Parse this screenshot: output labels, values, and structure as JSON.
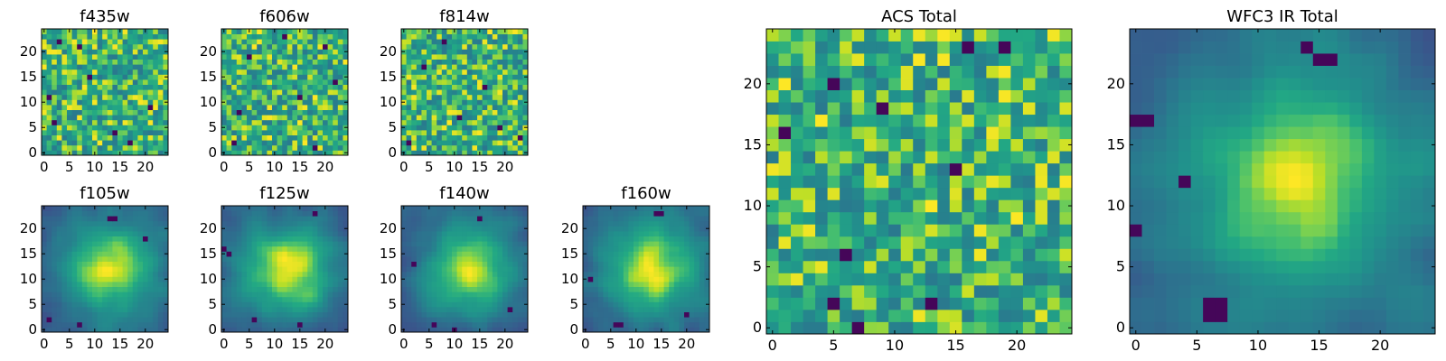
{
  "chart_data": [
    {
      "type": "heatmap",
      "title": "f435w",
      "xlabel": "",
      "ylabel": "",
      "xlim": [
        -0.5,
        24.5
      ],
      "ylim": [
        -0.5,
        24.5
      ],
      "xticks": [
        0,
        5,
        10,
        15,
        20
      ],
      "yticks": [
        0,
        5,
        10,
        15,
        20
      ],
      "grid": false,
      "colormap": "viridis",
      "pattern": "noise",
      "dark_pixels": [
        [
          2,
          6
        ],
        [
          3,
          22
        ],
        [
          7,
          21
        ],
        [
          14,
          4
        ],
        [
          1,
          11
        ],
        [
          21,
          9
        ],
        [
          17,
          2
        ],
        [
          9,
          15
        ]
      ],
      "seed": 11
    },
    {
      "type": "heatmap",
      "title": "f606w",
      "xlabel": "",
      "ylabel": "",
      "xlim": [
        -0.5,
        24.5
      ],
      "ylim": [
        -0.5,
        24.5
      ],
      "xticks": [
        0,
        5,
        10,
        15,
        20
      ],
      "yticks": [
        0,
        5,
        10,
        15,
        20
      ],
      "grid": false,
      "colormap": "viridis",
      "pattern": "noise",
      "dark_pixels": [
        [
          2,
          2
        ],
        [
          5,
          19
        ],
        [
          12,
          23
        ],
        [
          18,
          1
        ],
        [
          22,
          14
        ],
        [
          3,
          8
        ],
        [
          15,
          11
        ],
        [
          20,
          21
        ]
      ],
      "seed": 23
    },
    {
      "type": "heatmap",
      "title": "f814w",
      "xlabel": "",
      "ylabel": "",
      "xlim": [
        -0.5,
        24.5
      ],
      "ylim": [
        -0.5,
        24.5
      ],
      "xticks": [
        0,
        5,
        10,
        15,
        20
      ],
      "yticks": [
        0,
        5,
        10,
        15,
        20
      ],
      "grid": false,
      "colormap": "viridis",
      "pattern": "noise",
      "dark_pixels": [
        [
          1,
          2
        ],
        [
          16,
          13
        ],
        [
          8,
          22
        ],
        [
          19,
          5
        ],
        [
          4,
          17
        ],
        [
          23,
          3
        ],
        [
          11,
          7
        ]
      ],
      "seed": 37
    },
    {
      "type": "heatmap",
      "title": "f105w",
      "xlabel": "",
      "ylabel": "",
      "xlim": [
        -0.5,
        24.5
      ],
      "ylim": [
        -0.5,
        24.5
      ],
      "xticks": [
        0,
        5,
        10,
        15,
        20
      ],
      "yticks": [
        0,
        5,
        10,
        15,
        20
      ],
      "grid": false,
      "colormap": "viridis",
      "pattern": "smooth",
      "dark_pixels": [
        [
          13,
          22
        ],
        [
          14,
          22
        ],
        [
          1,
          2
        ],
        [
          7,
          1
        ],
        [
          20,
          18
        ]
      ],
      "seed": 41
    },
    {
      "type": "heatmap",
      "title": "f125w",
      "xlabel": "",
      "ylabel": "",
      "xlim": [
        -0.5,
        24.5
      ],
      "ylim": [
        -0.5,
        24.5
      ],
      "xticks": [
        0,
        5,
        10,
        15,
        20
      ],
      "yticks": [
        0,
        5,
        10,
        15,
        20
      ],
      "grid": false,
      "colormap": "viridis",
      "pattern": "smooth",
      "dark_pixels": [
        [
          0,
          16
        ],
        [
          1,
          15
        ],
        [
          18,
          23
        ],
        [
          6,
          2
        ],
        [
          15,
          1
        ]
      ],
      "seed": 53
    },
    {
      "type": "heatmap",
      "title": "f140w",
      "xlabel": "",
      "ylabel": "",
      "xlim": [
        -0.5,
        24.5
      ],
      "ylim": [
        -0.5,
        24.5
      ],
      "xticks": [
        0,
        5,
        10,
        15,
        20
      ],
      "yticks": [
        0,
        5,
        10,
        15,
        20
      ],
      "grid": false,
      "colormap": "viridis",
      "pattern": "smooth",
      "dark_pixels": [
        [
          15,
          22
        ],
        [
          2,
          13
        ],
        [
          6,
          1
        ],
        [
          21,
          4
        ],
        [
          10,
          0
        ]
      ],
      "seed": 67
    },
    {
      "type": "heatmap",
      "title": "f160w",
      "xlabel": "",
      "ylabel": "",
      "xlim": [
        -0.5,
        24.5
      ],
      "ylim": [
        -0.5,
        24.5
      ],
      "xticks": [
        0,
        5,
        10,
        15,
        20
      ],
      "yticks": [
        0,
        5,
        10,
        15,
        20
      ],
      "grid": false,
      "colormap": "viridis",
      "pattern": "smooth",
      "dark_pixels": [
        [
          14,
          23
        ],
        [
          15,
          23
        ],
        [
          1,
          10
        ],
        [
          6,
          1
        ],
        [
          7,
          1
        ],
        [
          20,
          3
        ]
      ],
      "seed": 79
    },
    {
      "type": "heatmap",
      "title": "ACS Total",
      "xlabel": "",
      "ylabel": "",
      "xlim": [
        -0.5,
        24.5
      ],
      "ylim": [
        -0.5,
        24.5
      ],
      "xticks": [
        0,
        5,
        10,
        15,
        20
      ],
      "yticks": [
        0,
        5,
        10,
        15,
        20
      ],
      "grid": false,
      "colormap": "viridis",
      "pattern": "noise",
      "dark_pixels": [
        [
          5,
          20
        ],
        [
          9,
          18
        ],
        [
          1,
          16
        ],
        [
          15,
          13
        ],
        [
          6,
          6
        ],
        [
          5,
          2
        ],
        [
          13,
          2
        ],
        [
          7,
          0
        ],
        [
          16,
          23
        ],
        [
          19,
          23
        ]
      ],
      "seed": 91
    },
    {
      "type": "heatmap",
      "title": "WFC3 IR Total",
      "xlabel": "",
      "ylabel": "",
      "xlim": [
        -0.5,
        24.5
      ],
      "ylim": [
        -0.5,
        24.5
      ],
      "xticks": [
        0,
        5,
        10,
        15,
        20
      ],
      "yticks": [
        0,
        5,
        10,
        15,
        20
      ],
      "grid": false,
      "colormap": "viridis",
      "pattern": "smooth",
      "dark_pixels": [
        [
          0,
          17
        ],
        [
          1,
          17
        ],
        [
          14,
          23
        ],
        [
          15,
          22
        ],
        [
          16,
          22
        ],
        [
          6,
          1
        ],
        [
          7,
          1
        ],
        [
          6,
          2
        ],
        [
          7,
          2
        ],
        [
          4,
          12
        ],
        [
          0,
          8
        ]
      ],
      "seed": 103
    }
  ]
}
